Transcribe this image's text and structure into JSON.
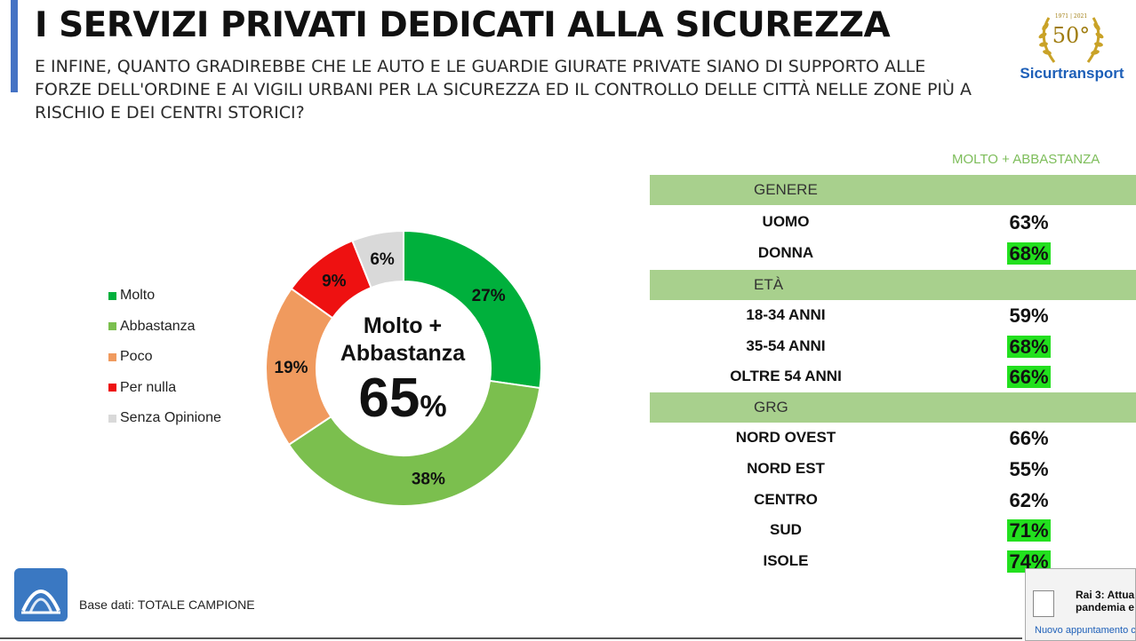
{
  "header": {
    "title": "I SERVIZI PRIVATI DEDICATI ALLA SICUREZZA",
    "subtitle": "E INFINE, QUANTO GRADIREBBE CHE LE AUTO E LE GUARDIE GIURATE PRIVATE SIANO DI SUPPORTO ALLE FORZE DELL'ORDINE E AI VIGILI URBANI PER LA SICUREZZA ED IL CONTROLLO DELLE CITTÀ NELLE ZONE PIÙ A RISCHIO E DEI CENTRI STORICI?"
  },
  "brand": {
    "years": "1971 | 2021",
    "anniversary": "50°",
    "name": "Sicurtransport"
  },
  "chart_data": {
    "type": "pie",
    "donut": true,
    "categories": [
      "Molto",
      "Abbastanza",
      "Poco",
      "Per nulla",
      "Senza Opinione"
    ],
    "values": [
      27,
      38,
      19,
      9,
      6
    ],
    "value_labels": [
      "27%",
      "38%",
      "19%",
      "9%",
      "6%"
    ],
    "colors": [
      "#00b03c",
      "#7bbf4e",
      "#f09a5e",
      "#ee1111",
      "#d9d9d9"
    ],
    "legend_position": "left",
    "center_text_line1": "Molto +",
    "center_text_line2": "Abbastanza",
    "center_value": "65",
    "center_unit": "%"
  },
  "table": {
    "column_header": "MOLTO + ABBASTANZA",
    "groups": [
      {
        "name": "GENERE",
        "rows": [
          {
            "label": "UOMO",
            "value": "63%",
            "highlight": false
          },
          {
            "label": "DONNA",
            "value": "68%",
            "highlight": true
          }
        ]
      },
      {
        "name": "ETÀ",
        "rows": [
          {
            "label": "18-34 ANNI",
            "value": "59%",
            "highlight": false
          },
          {
            "label": "35-54 ANNI",
            "value": "68%",
            "highlight": true
          },
          {
            "label": "OLTRE 54 ANNI",
            "value": "66%",
            "highlight": true
          }
        ]
      },
      {
        "name": "GRG",
        "rows": [
          {
            "label": "NORD OVEST",
            "value": "66%",
            "highlight": false
          },
          {
            "label": "NORD EST",
            "value": "55%",
            "highlight": false
          },
          {
            "label": "CENTRO",
            "value": "62%",
            "highlight": false
          },
          {
            "label": "SUD",
            "value": "71%",
            "highlight": true
          },
          {
            "label": "ISOLE",
            "value": "74%",
            "highlight": true
          }
        ]
      }
    ]
  },
  "footer": {
    "base_text": "Base dati: TOTALE CAMPIONE"
  },
  "notification": {
    "title_line1": "Rai 3: Attual",
    "title_line2": "pandemia e",
    "subtext": "Nuovo appuntamento c"
  }
}
